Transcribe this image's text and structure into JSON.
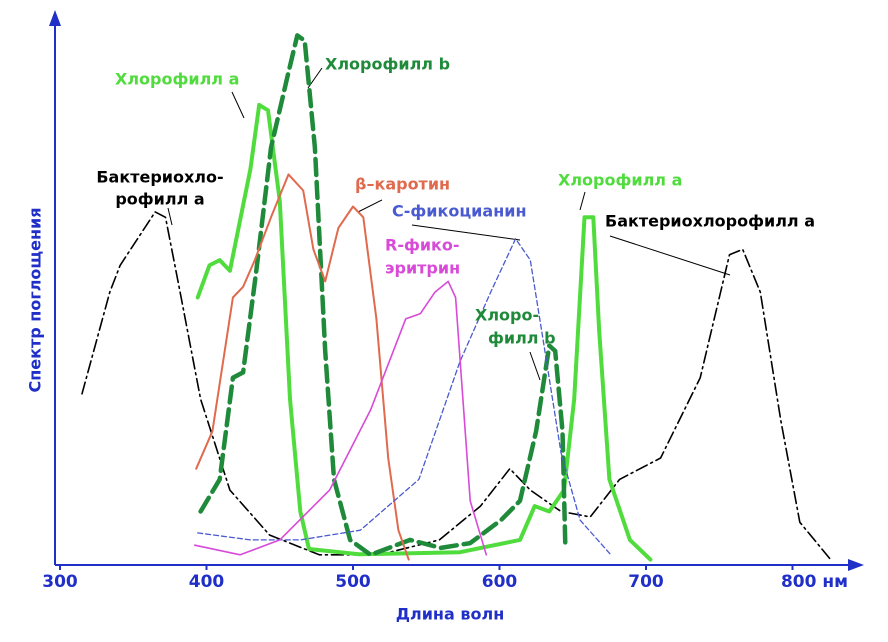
{
  "chart_data": {
    "type": "line",
    "y_label": "Спектр поглощения",
    "x_label": "Длина волн",
    "xlim": [
      300,
      850
    ],
    "ylim": [
      0,
      100
    ],
    "xticks": [
      300,
      400,
      500,
      600,
      700,
      {
        "value": 800,
        "label": "800 нм"
      }
    ],
    "series": [
      {
        "name": [
          "Бактериохлорофилл а"
        ],
        "color": "#000000",
        "style": "dash-dot",
        "x": [
          315,
          334,
          341,
          365,
          372,
          382,
          396,
          416,
          443,
          477,
          518,
          559,
          587,
          607,
          621,
          642,
          662,
          682,
          710,
          737,
          757,
          766,
          778,
          792,
          805,
          826
        ],
        "values": [
          32,
          51,
          56,
          66,
          65,
          51,
          31,
          14,
          5.6,
          1.9,
          1.9,
          4.7,
          11,
          18,
          14,
          10,
          9,
          16,
          20,
          35,
          58,
          59,
          51,
          27,
          8,
          1
        ]
      },
      {
        "name": [
          "Хлорофилл а"
        ],
        "color": "#4fdc3c",
        "style": "solid",
        "x": [
          394,
          402,
          409,
          416,
          430,
          436,
          442,
          450,
          457,
          464,
          470,
          504,
          573,
          614,
          624,
          634,
          644,
          651,
          658,
          664,
          668,
          675,
          689,
          703
        ],
        "values": [
          50,
          56,
          57,
          55,
          74,
          86,
          85,
          68,
          31,
          10,
          3,
          2,
          2.4,
          4.7,
          11,
          10,
          14,
          31,
          65,
          65,
          44,
          16,
          4.7,
          1
        ]
      },
      {
        "name": [
          "Хлорофилл b"
        ],
        "color": "#1f8a3a",
        "style": "dashed",
        "x": [
          396,
          409,
          418,
          425,
          434,
          444,
          455,
          462,
          467,
          474,
          481,
          487,
          498,
          512,
          539,
          560,
          580,
          601,
          614,
          625,
          634,
          638,
          643,
          645
        ],
        "values": [
          10,
          16,
          35,
          36,
          55,
          78,
          91,
          99,
          98,
          78,
          40,
          16,
          4.7,
          1.9,
          4.7,
          3.2,
          4.1,
          8.4,
          12,
          25,
          41,
          40,
          25,
          3
        ]
      },
      {
        "name": [
          "β–каротин"
        ],
        "color": "#e06a4e",
        "style": "solid",
        "x": [
          393,
          404,
          418,
          425,
          433,
          444,
          456,
          466,
          473,
          481,
          490,
          500,
          507,
          516,
          524,
          531,
          538
        ],
        "values": [
          18,
          25,
          50,
          52,
          57,
          65,
          73,
          70,
          59,
          53,
          63,
          67,
          65,
          46,
          20,
          6.5,
          1
        ]
      },
      {
        "name": [
          "С-фикоцианин"
        ],
        "color": "#4a5ad0",
        "style": "fine-dashed",
        "x": [
          394,
          430,
          464,
          505,
          545,
          573,
          594,
          611,
          621,
          631,
          642,
          655,
          676
        ],
        "values": [
          6,
          4.7,
          4.7,
          6.5,
          16,
          38,
          51,
          61,
          57,
          40,
          21,
          8.4,
          1.9
        ]
      },
      {
        "name": [
          "R-фико-",
          "эритрин"
        ],
        "color": "#d84ad8",
        "style": "solid",
        "x": [
          392,
          423,
          450,
          484,
          512,
          536,
          546,
          556,
          565,
          570,
          575,
          580,
          591
        ],
        "values": [
          3.7,
          1.9,
          4.7,
          14,
          29,
          46,
          47,
          51,
          53,
          50,
          31,
          12,
          1.9
        ]
      }
    ],
    "annotations": [
      [
        "Бактериохло-",
        "рофилл а"
      ],
      [
        "Хлорофилл а"
      ],
      [
        "Хлоро-",
        "филл b"
      ]
    ]
  }
}
